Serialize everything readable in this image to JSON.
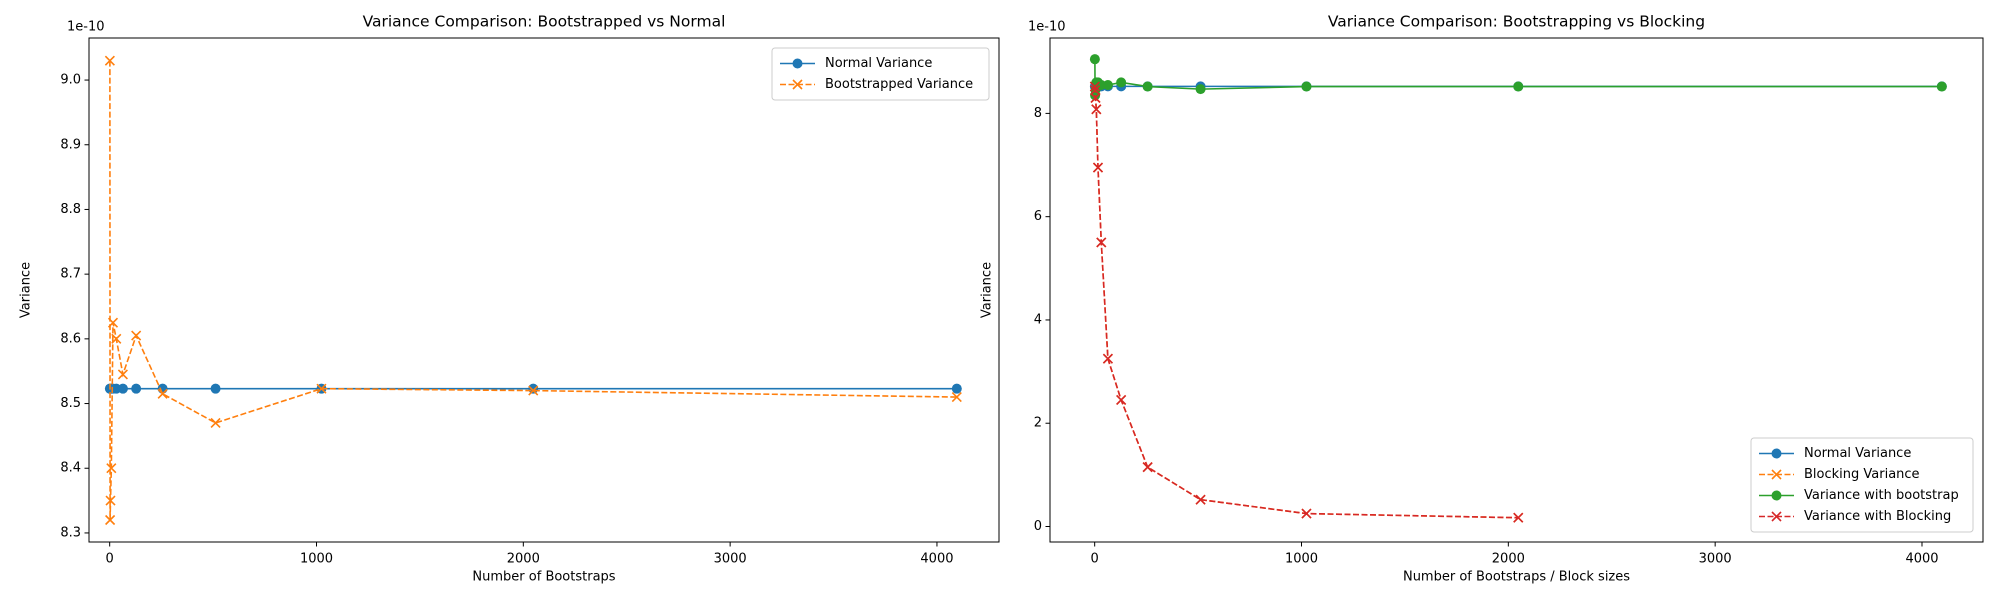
{
  "chart_data": [
    {
      "type": "line",
      "title": "Variance Comparison: Bootstrapped vs Normal",
      "x_label": "Number of Bootstraps",
      "y_label": "Variance",
      "y_offset_label": "1e-10",
      "x": [
        1,
        2,
        4,
        8,
        16,
        32,
        64,
        128,
        256,
        512,
        1024,
        2048,
        4096
      ],
      "series": [
        {
          "name": "Normal Variance",
          "color": "#1f77b4",
          "marker": "o",
          "linestyle": "solid",
          "values": [
            8.523,
            8.523,
            8.523,
            8.523,
            8.523,
            8.523,
            8.523,
            8.523,
            8.523,
            8.523,
            8.523,
            8.523,
            8.523
          ]
        },
        {
          "name": "Bootstrapped Variance",
          "color": "#ff7f0e",
          "marker": "x",
          "linestyle": "dashed",
          "values": [
            9.03,
            8.32,
            8.35,
            8.4,
            8.625,
            8.6,
            8.545,
            8.605,
            8.515,
            8.47,
            8.523,
            8.52,
            8.51
          ]
        }
      ],
      "xlim": [
        -100,
        4300
      ],
      "xticks": [
        0,
        1000,
        2000,
        3000,
        4000
      ],
      "ylim": [
        8.286,
        9.065
      ],
      "yticks": [
        8.3,
        8.4,
        8.5,
        8.6,
        8.7,
        8.8,
        8.9,
        {
          "value": 9,
          "label": "9.0"
        }
      ],
      "legend": "upper right"
    },
    {
      "type": "line",
      "title": "Variance Comparison: Bootstrapping vs Blocking",
      "x_label": "Number of Bootstraps  / Block sizes",
      "y_label": "Variance",
      "y_offset_label": "1e-10",
      "x": [
        1,
        2,
        4,
        8,
        16,
        32,
        64,
        128,
        256,
        512,
        1024,
        2048,
        4096
      ],
      "series": [
        {
          "name": "Normal Variance",
          "color": "#1f77b4",
          "marker": "o",
          "linestyle": "solid",
          "values": [
            8.523,
            8.523,
            8.523,
            8.523,
            8.523,
            8.523,
            8.523,
            8.523,
            8.523,
            8.523,
            8.523,
            8.523,
            8.523
          ]
        },
        {
          "name": "Blocking Variance",
          "color": "#ff7f0e",
          "marker": "x",
          "linestyle": "dashed",
          "values": [
            8.52,
            8.45,
            8.3,
            8.08,
            6.95,
            5.5,
            3.25,
            2.45,
            1.15,
            0.52,
            0.25,
            0.17,
            null
          ]
        },
        {
          "name": "Variance with bootstrap",
          "color": "#2ca02c",
          "marker": "o",
          "linestyle": "solid",
          "values": [
            9.05,
            8.35,
            8.45,
            8.6,
            8.6,
            8.55,
            8.55,
            8.6,
            8.52,
            8.47,
            8.52,
            8.52,
            8.52
          ]
        },
        {
          "name": "Variance with Blocking",
          "color": "#d62728",
          "marker": "x",
          "linestyle": "dashed",
          "values": [
            8.52,
            8.45,
            8.3,
            8.08,
            6.95,
            5.5,
            3.25,
            2.45,
            1.15,
            0.52,
            0.25,
            0.17,
            null
          ]
        }
      ],
      "xlim": [
        -216,
        4295
      ],
      "xticks": [
        0,
        1000,
        2000,
        3000,
        4000
      ],
      "ylim": [
        -0.3,
        9.46
      ],
      "yticks": [
        0,
        2,
        4,
        6,
        8
      ],
      "legend": "lower right"
    }
  ]
}
